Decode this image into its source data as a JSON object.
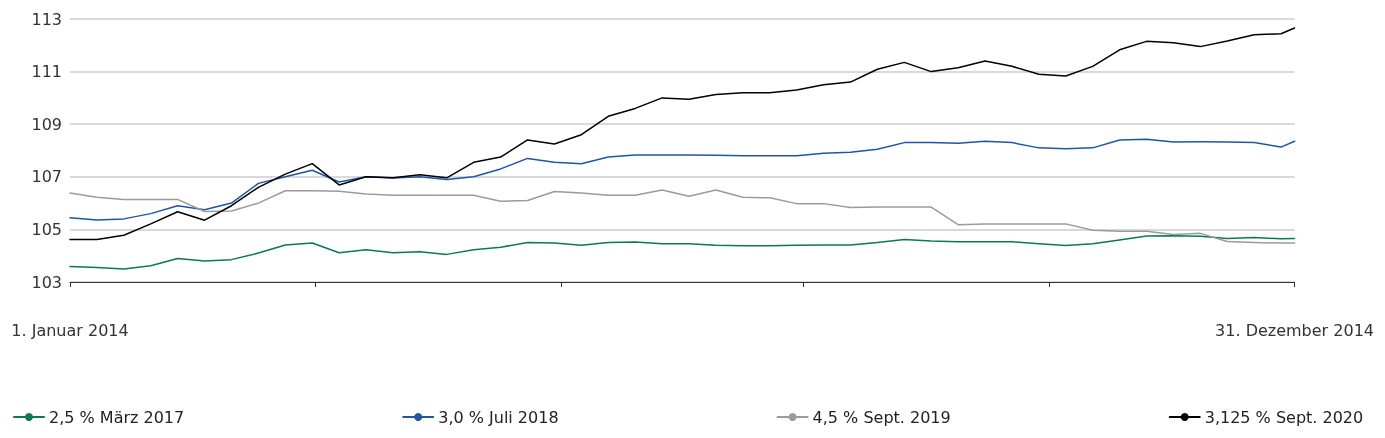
{
  "chart_data": {
    "type": "line",
    "x": [
      "2014-01-01",
      "2014-01-09",
      "2014-01-17",
      "2014-01-25",
      "2014-02-02",
      "2014-02-10",
      "2014-02-18",
      "2014-02-26",
      "2014-03-06",
      "2014-03-14",
      "2014-03-22",
      "2014-03-30",
      "2014-04-07",
      "2014-04-15",
      "2014-04-23",
      "2014-05-01",
      "2014-05-09",
      "2014-05-17",
      "2014-05-25",
      "2014-06-02",
      "2014-06-10",
      "2014-06-18",
      "2014-06-26",
      "2014-07-04",
      "2014-07-12",
      "2014-07-20",
      "2014-07-28",
      "2014-08-05",
      "2014-08-13",
      "2014-08-21",
      "2014-08-29",
      "2014-09-06",
      "2014-09-14",
      "2014-09-22",
      "2014-09-30",
      "2014-10-08",
      "2014-10-16",
      "2014-10-24",
      "2014-11-01",
      "2014-11-09",
      "2014-11-17",
      "2014-11-25",
      "2014-12-03",
      "2014-12-11",
      "2014-12-19",
      "2014-12-27",
      "2014-12-31"
    ],
    "series": [
      {
        "name": "2,5 % März 2017",
        "color": "#0b7a50",
        "values": [
          103.59,
          103.55,
          103.49,
          103.62,
          103.89,
          103.8,
          103.85,
          104.1,
          104.41,
          104.48,
          104.11,
          104.23,
          104.11,
          104.15,
          104.05,
          104.23,
          104.32,
          104.5,
          104.48,
          104.4,
          104.5,
          104.52,
          104.45,
          104.45,
          104.4,
          104.38,
          104.38,
          104.4,
          104.41,
          104.41,
          104.5,
          104.62,
          104.56,
          104.53,
          104.53,
          104.53,
          104.45,
          104.39,
          104.45,
          104.6,
          104.75,
          104.76,
          104.74,
          104.65,
          104.69,
          104.64,
          104.65
        ]
      },
      {
        "name": "3,0 % Juli 2018",
        "color": "#1f56a3",
        "values": [
          105.44,
          105.36,
          105.4,
          105.6,
          105.9,
          105.75,
          106.0,
          106.75,
          107.0,
          107.25,
          106.8,
          107.0,
          106.95,
          107.0,
          106.9,
          107.0,
          107.3,
          107.7,
          107.55,
          107.5,
          107.75,
          107.83,
          107.83,
          107.83,
          107.82,
          107.8,
          107.8,
          107.8,
          107.9,
          107.93,
          108.05,
          108.3,
          108.3,
          108.28,
          108.35,
          108.3,
          108.1,
          108.07,
          108.1,
          108.4,
          108.43,
          108.32,
          108.33,
          108.32,
          108.3,
          108.13,
          108.35
        ]
      },
      {
        "name": "4,5 % Sept. 2019",
        "color": "#9b9b9b",
        "values": [
          106.38,
          106.22,
          106.14,
          106.14,
          106.14,
          105.68,
          105.7,
          106.0,
          106.47,
          106.47,
          106.45,
          106.35,
          106.3,
          106.3,
          106.3,
          106.3,
          106.07,
          106.1,
          106.44,
          106.38,
          106.3,
          106.3,
          106.5,
          106.26,
          106.5,
          106.22,
          106.2,
          105.98,
          105.98,
          105.83,
          105.85,
          105.85,
          105.85,
          105.18,
          105.21,
          105.21,
          105.21,
          105.21,
          104.97,
          104.93,
          104.93,
          104.81,
          104.85,
          104.54,
          104.5,
          104.48,
          104.48
        ]
      },
      {
        "name": "3,125 % Sept. 2020",
        "color": "#000000",
        "values": [
          104.62,
          104.62,
          104.78,
          105.21,
          105.67,
          105.35,
          105.9,
          106.6,
          107.1,
          107.5,
          106.69,
          107.0,
          106.96,
          107.08,
          106.96,
          107.55,
          107.75,
          108.4,
          108.25,
          108.6,
          109.3,
          109.6,
          110.0,
          109.95,
          110.13,
          110.2,
          110.2,
          110.3,
          110.5,
          110.6,
          111.09,
          111.35,
          111.0,
          111.15,
          111.4,
          111.2,
          110.9,
          110.83,
          111.2,
          111.83,
          112.15,
          112.1,
          111.95,
          112.16,
          112.4,
          112.44,
          112.66
        ]
      }
    ],
    "xlim": [
      "2014-01-01",
      "2014-12-31"
    ],
    "xticks": [
      {
        "value": "2014-01-01",
        "label": "1. Januar 2014"
      },
      {
        "value": "2014-03-15",
        "label": null
      },
      {
        "value": "2014-05-27",
        "label": null
      },
      {
        "value": "2014-08-07",
        "label": null
      },
      {
        "value": "2014-10-19",
        "label": null
      },
      {
        "value": "2014-12-31",
        "label": "31. Dezember 2014"
      }
    ],
    "ylim": [
      103,
      113
    ],
    "yticks": [
      103,
      105,
      107,
      109,
      111,
      113
    ],
    "grid": "y",
    "legend": "bottom",
    "marker": "none",
    "line_style": "solid"
  }
}
